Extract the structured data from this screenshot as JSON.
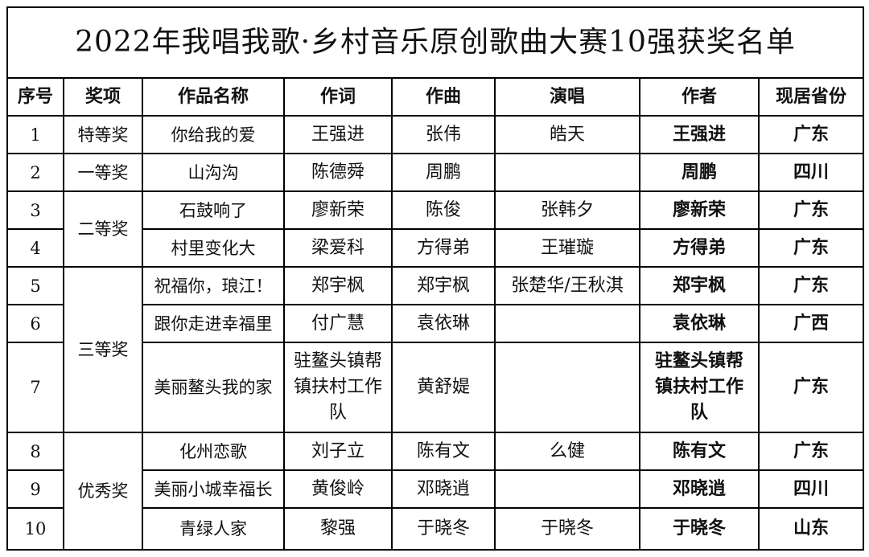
{
  "title": "2022年我唱我歌·乡村音乐原创歌曲大赛10强获奖名单",
  "headers": [
    "序号",
    "奖项",
    "作品名称",
    "作词",
    "作曲",
    "演唱",
    "作者",
    "现居省份"
  ],
  "awards": {
    "special": "特等奖",
    "first": "一等奖",
    "second": "二等奖",
    "third": "三等奖",
    "excellent": "优秀奖"
  },
  "rows": [
    {
      "no": "1",
      "song": "你给我的爱",
      "lyrics": "王强进",
      "music": "张伟",
      "singer": "皓天",
      "author": "王强进",
      "province": "广东"
    },
    {
      "no": "2",
      "song": "山沟沟",
      "lyrics": "陈德舜",
      "music": "周鹏",
      "singer": "",
      "author": "周鹏",
      "province": "四川"
    },
    {
      "no": "3",
      "song": "石鼓响了",
      "lyrics": "廖新荣",
      "music": "陈俊",
      "singer": "张韩夕",
      "author": "廖新荣",
      "province": "广东"
    },
    {
      "no": "4",
      "song": "村里变化大",
      "lyrics": "梁爱科",
      "music": "方得弟",
      "singer": "王璀璇",
      "author": "方得弟",
      "province": "广东"
    },
    {
      "no": "5",
      "song": "祝福你，琅江！",
      "lyrics": "郑宇枫",
      "music": "郑宇枫",
      "singer": "张楚华/王秋淇",
      "author": "郑宇枫",
      "province": "广东"
    },
    {
      "no": "6",
      "song": "跟你走进幸福里",
      "lyrics": "付广慧",
      "music": "袁依琳",
      "singer": "",
      "author": "袁依琳",
      "province": "广西"
    },
    {
      "no": "7",
      "song": "美丽鳌头我的家",
      "lyrics": "驻鳌头镇帮镇扶村工作队",
      "music": "黄舒媞",
      "singer": "",
      "author": "驻鳌头镇帮镇扶村工作队",
      "province": "广东"
    },
    {
      "no": "8",
      "song": "化州恋歌",
      "lyrics": "刘子立",
      "music": "陈有文",
      "singer": "么健",
      "author": "陈有文",
      "province": "广东"
    },
    {
      "no": "9",
      "song": "美丽小城幸福长",
      "lyrics": "黄俊岭",
      "music": "邓晓逍",
      "singer": "",
      "author": "邓晓逍",
      "province": "四川"
    },
    {
      "no": "10",
      "song": "青绿人家",
      "lyrics": "黎强",
      "music": "于晓冬",
      "singer": "于晓冬",
      "author": "于晓冬",
      "province": "山东"
    }
  ]
}
